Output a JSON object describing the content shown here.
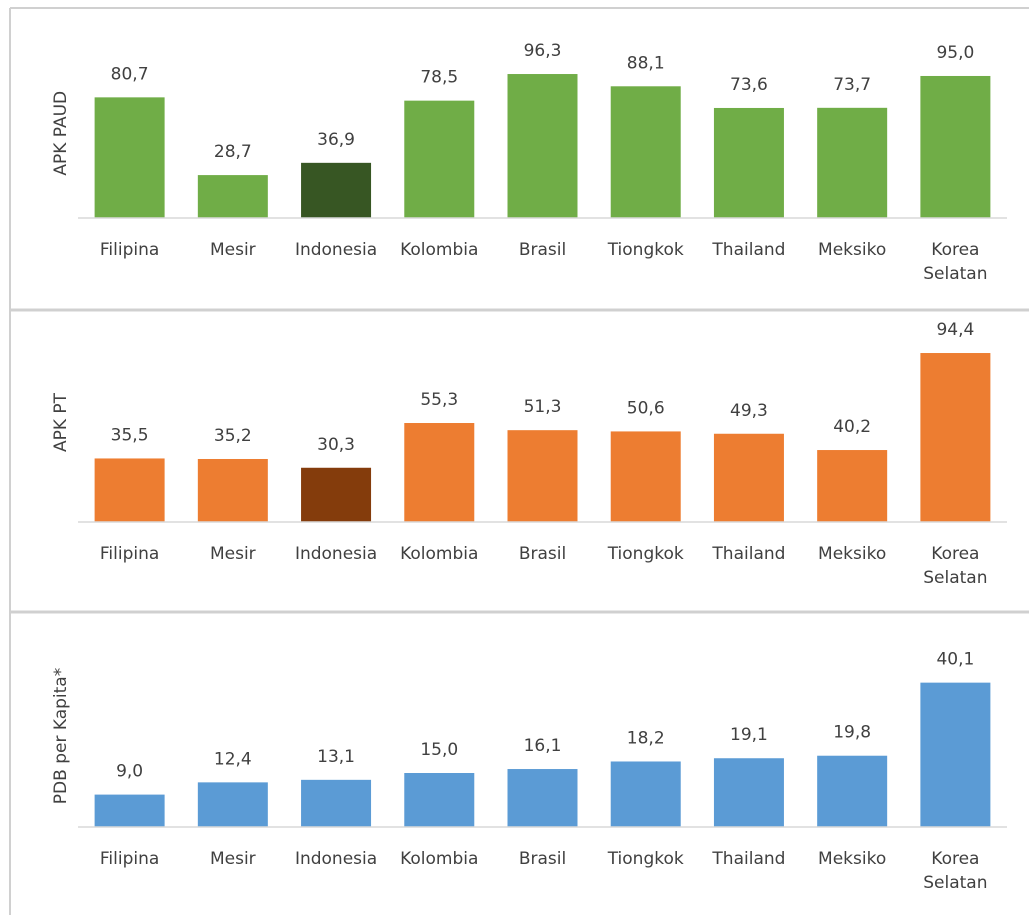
{
  "chart_data": [
    {
      "type": "bar",
      "y_label": "APK PAUD",
      "categories": [
        "Filipina",
        "Mesir",
        "Indonesia",
        "Kolombia",
        "Brasil",
        "Tiongkok",
        "Thailand",
        "Meksiko",
        "Korea Selatan"
      ],
      "values": [
        80.7,
        28.7,
        36.9,
        78.5,
        96.3,
        88.1,
        73.6,
        73.7,
        95.0
      ],
      "value_labels": [
        "80,7",
        "28,7",
        "36,9",
        "78,5",
        "96,3",
        "88,1",
        "73,6",
        "73,7",
        "95,0"
      ],
      "colors": [
        "#70ad47",
        "#70ad47",
        "#375623",
        "#70ad47",
        "#70ad47",
        "#70ad47",
        "#70ad47",
        "#70ad47",
        "#70ad47"
      ],
      "ylim": [
        0,
        100
      ]
    },
    {
      "type": "bar",
      "y_label": "APK PT",
      "categories": [
        "Filipina",
        "Mesir",
        "Indonesia",
        "Kolombia",
        "Brasil",
        "Tiongkok",
        "Thailand",
        "Meksiko",
        "Korea Selatan"
      ],
      "values": [
        35.5,
        35.2,
        30.3,
        55.3,
        51.3,
        50.6,
        49.3,
        40.2,
        94.4
      ],
      "value_labels": [
        "35,5",
        "35,2",
        "30,3",
        "55,3",
        "51,3",
        "50,6",
        "49,3",
        "40,2",
        "94,4"
      ],
      "colors": [
        "#ed7d31",
        "#ed7d31",
        "#843c0c",
        "#ed7d31",
        "#ed7d31",
        "#ed7d31",
        "#ed7d31",
        "#ed7d31",
        "#ed7d31"
      ],
      "ylim": [
        0,
        100
      ]
    },
    {
      "type": "bar",
      "y_label": "PDB per Kapita*",
      "categories": [
        "Filipina",
        "Mesir",
        "Indonesia",
        "Kolombia",
        "Brasil",
        "Tiongkok",
        "Thailand",
        "Meksiko",
        "Korea Selatan"
      ],
      "values": [
        9.0,
        12.4,
        13.1,
        15.0,
        16.1,
        18.2,
        19.1,
        19.8,
        40.1
      ],
      "value_labels": [
        "9,0",
        "12,4",
        "13,1",
        "15,0",
        "16,1",
        "18,2",
        "19,1",
        "19,8",
        "40,1"
      ],
      "colors": [
        "#5b9bd5",
        "#5b9bd5",
        "#5b9bd5",
        "#5b9bd5",
        "#5b9bd5",
        "#5b9bd5",
        "#5b9bd5",
        "#5b9bd5",
        "#5b9bd5"
      ],
      "ylim": [
        0,
        45
      ]
    }
  ]
}
